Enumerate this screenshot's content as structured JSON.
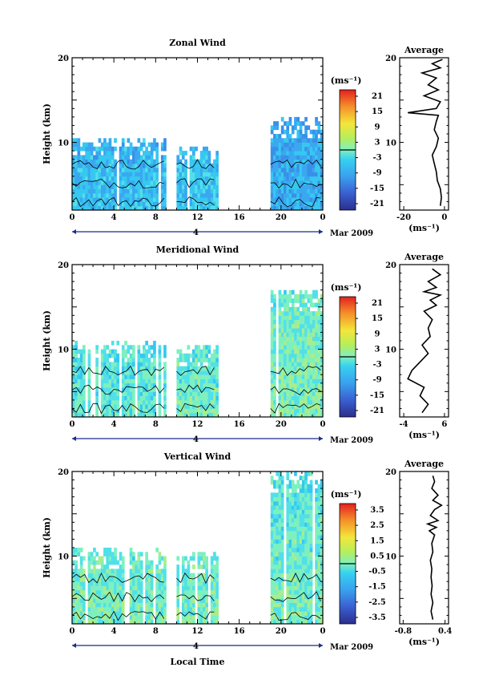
{
  "chart_data": [
    {
      "type": "heatmap",
      "title": "Zonal Wind",
      "ylabel": "Height (km)",
      "xlabel": "",
      "xlim": [
        0,
        24
      ],
      "ylim": [
        2,
        20
      ],
      "x_ticks": [
        "0",
        "4",
        "8",
        "12",
        "16",
        "20",
        "0"
      ],
      "x_tick_values": [
        0,
        4,
        8,
        12,
        16,
        20,
        24
      ],
      "y_ticks": [
        "10",
        "20"
      ],
      "y_tick_values": [
        10,
        20
      ],
      "date_label": "4",
      "month_label": "Mar 2009",
      "colorbar": {
        "unit": "(ms⁻¹)",
        "ticks": [
          "21",
          "15",
          "9",
          "3",
          "-3",
          "-9",
          "-15",
          "-21"
        ],
        "range": [
          -24,
          24
        ],
        "zero_line": true
      },
      "coverage": [
        {
          "x": [
            0,
            9
          ],
          "y": [
            2,
            10.5
          ],
          "mean": -8
        },
        {
          "x": [
            10,
            14
          ],
          "y": [
            2,
            9.6
          ],
          "mean": -7
        },
        {
          "x": [
            19,
            24
          ],
          "y": [
            2,
            13
          ],
          "mean": -10
        }
      ],
      "average_profile": {
        "title": "Average",
        "xlabel": "(ms⁻¹)",
        "x_ticks": [
          "-20",
          "0"
        ],
        "x_tick_values": [
          -20,
          0
        ],
        "xlim": [
          -22,
          2
        ],
        "y_ticks": [
          "10",
          "20"
        ],
        "ylim": [
          2,
          20
        ],
        "points": [
          [
            -2,
            2.5
          ],
          [
            -1.5,
            3.5
          ],
          [
            -2,
            4.5
          ],
          [
            -3.5,
            5.5
          ],
          [
            -4,
            6.5
          ],
          [
            -5,
            7.5
          ],
          [
            -6,
            8.5
          ],
          [
            -4,
            9.5
          ],
          [
            -3,
            10.5
          ],
          [
            -5,
            11.5
          ],
          [
            -4,
            12.5
          ],
          [
            -3,
            13.2
          ],
          [
            -18,
            13.5
          ],
          [
            -4,
            14
          ],
          [
            -2,
            14.8
          ],
          [
            -10,
            15.5
          ],
          [
            -3,
            16.2
          ],
          [
            -8,
            16.8
          ],
          [
            -4,
            17.6
          ],
          [
            -11,
            18.2
          ],
          [
            -2,
            18.8
          ],
          [
            -6,
            19.3
          ],
          [
            -1,
            19.8
          ]
        ]
      }
    },
    {
      "type": "heatmap",
      "title": "Meridional Wind",
      "ylabel": "Height (km)",
      "xlabel": "",
      "xlim": [
        0,
        24
      ],
      "ylim": [
        2,
        20
      ],
      "x_ticks": [
        "0",
        "4",
        "8",
        "12",
        "16",
        "20",
        "0"
      ],
      "x_tick_values": [
        0,
        4,
        8,
        12,
        16,
        20,
        24
      ],
      "y_ticks": [
        "10",
        "20"
      ],
      "y_tick_values": [
        10,
        20
      ],
      "date_label": "4",
      "month_label": "Mar 2009",
      "colorbar": {
        "unit": "(ms⁻¹)",
        "ticks": [
          "21",
          "15",
          "9",
          "3",
          "-3",
          "-9",
          "-15",
          "-21"
        ],
        "range": [
          -24,
          24
        ],
        "zero_line": true
      },
      "coverage": [
        {
          "x": [
            0,
            9
          ],
          "y": [
            2,
            11
          ],
          "mean": -2
        },
        {
          "x": [
            10,
            14
          ],
          "y": [
            2,
            10.5
          ],
          "mean": -1
        },
        {
          "x": [
            19,
            24
          ],
          "y": [
            2,
            17
          ],
          "mean": 1
        }
      ],
      "average_profile": {
        "title": "Average",
        "xlabel": "(ms⁻¹)",
        "x_ticks": [
          "-4",
          "6"
        ],
        "x_tick_values": [
          -4,
          6
        ],
        "xlim": [
          -5,
          7
        ],
        "y_ticks": [
          "10",
          "20"
        ],
        "ylim": [
          2,
          20
        ],
        "points": [
          [
            0.5,
            2.5
          ],
          [
            2,
            3.5
          ],
          [
            0,
            4.5
          ],
          [
            1,
            5.5
          ],
          [
            -3,
            6.5
          ],
          [
            -2,
            7.5
          ],
          [
            0,
            8.5
          ],
          [
            2,
            9.5
          ],
          [
            0.5,
            10.5
          ],
          [
            2.5,
            11.5
          ],
          [
            2,
            12.5
          ],
          [
            3,
            13.5
          ],
          [
            1,
            14.5
          ],
          [
            4,
            15.2
          ],
          [
            2.5,
            15.8
          ],
          [
            5,
            16.4
          ],
          [
            1,
            16.8
          ],
          [
            4,
            17.3
          ],
          [
            2,
            18
          ],
          [
            5,
            18.8
          ],
          [
            3,
            19.5
          ]
        ]
      }
    },
    {
      "type": "heatmap",
      "title": "Vertical Wind",
      "ylabel": "Height (km)",
      "xlabel": "Local Time",
      "xlim": [
        0,
        24
      ],
      "ylim": [
        2,
        20
      ],
      "x_ticks": [
        "0",
        "4",
        "8",
        "12",
        "16",
        "20",
        "0"
      ],
      "x_tick_values": [
        0,
        4,
        8,
        12,
        16,
        20,
        24
      ],
      "y_ticks": [
        "10",
        "20"
      ],
      "y_tick_values": [
        10,
        20
      ],
      "date_label": "4",
      "month_label": "Mar 2009",
      "colorbar": {
        "unit": "(ms⁻¹)",
        "ticks": [
          "3.5",
          "2.5",
          "1.5",
          "0.5",
          "-0.5",
          "-1.5",
          "-2.5",
          "-3.5"
        ],
        "range": [
          -4,
          4
        ],
        "zero_line": true
      },
      "coverage": [
        {
          "x": [
            0,
            9
          ],
          "y": [
            2,
            11
          ],
          "mean": 0
        },
        {
          "x": [
            10,
            14
          ],
          "y": [
            2,
            10.5
          ],
          "mean": 0
        },
        {
          "x": [
            19,
            24
          ],
          "y": [
            2,
            20
          ],
          "mean": 0
        }
      ],
      "average_profile": {
        "title": "Average",
        "xlabel": "(ms⁻¹)",
        "x_ticks": [
          "-0.8",
          "0.4"
        ],
        "x_tick_values": [
          -0.8,
          0.4
        ],
        "xlim": [
          -0.9,
          0.5
        ],
        "y_ticks": [
          "10",
          "20"
        ],
        "ylim": [
          2,
          20
        ],
        "points": [
          [
            0.05,
            2.5
          ],
          [
            0,
            3.5
          ],
          [
            0.05,
            4.5
          ],
          [
            0,
            5.5
          ],
          [
            0.03,
            6.5
          ],
          [
            0,
            7.5
          ],
          [
            0.02,
            8.5
          ],
          [
            -0.02,
            9.5
          ],
          [
            0.05,
            10.5
          ],
          [
            0.02,
            11.5
          ],
          [
            0.1,
            12.5
          ],
          [
            -0.05,
            13
          ],
          [
            0.15,
            13.4
          ],
          [
            -0.1,
            13.8
          ],
          [
            0.2,
            14.2
          ],
          [
            -0.02,
            14.8
          ],
          [
            0.1,
            15.5
          ],
          [
            0.3,
            16
          ],
          [
            0.05,
            16.6
          ],
          [
            0.2,
            17.2
          ],
          [
            0.02,
            18
          ],
          [
            0.1,
            18.8
          ],
          [
            0.05,
            19.5
          ]
        ]
      }
    }
  ]
}
